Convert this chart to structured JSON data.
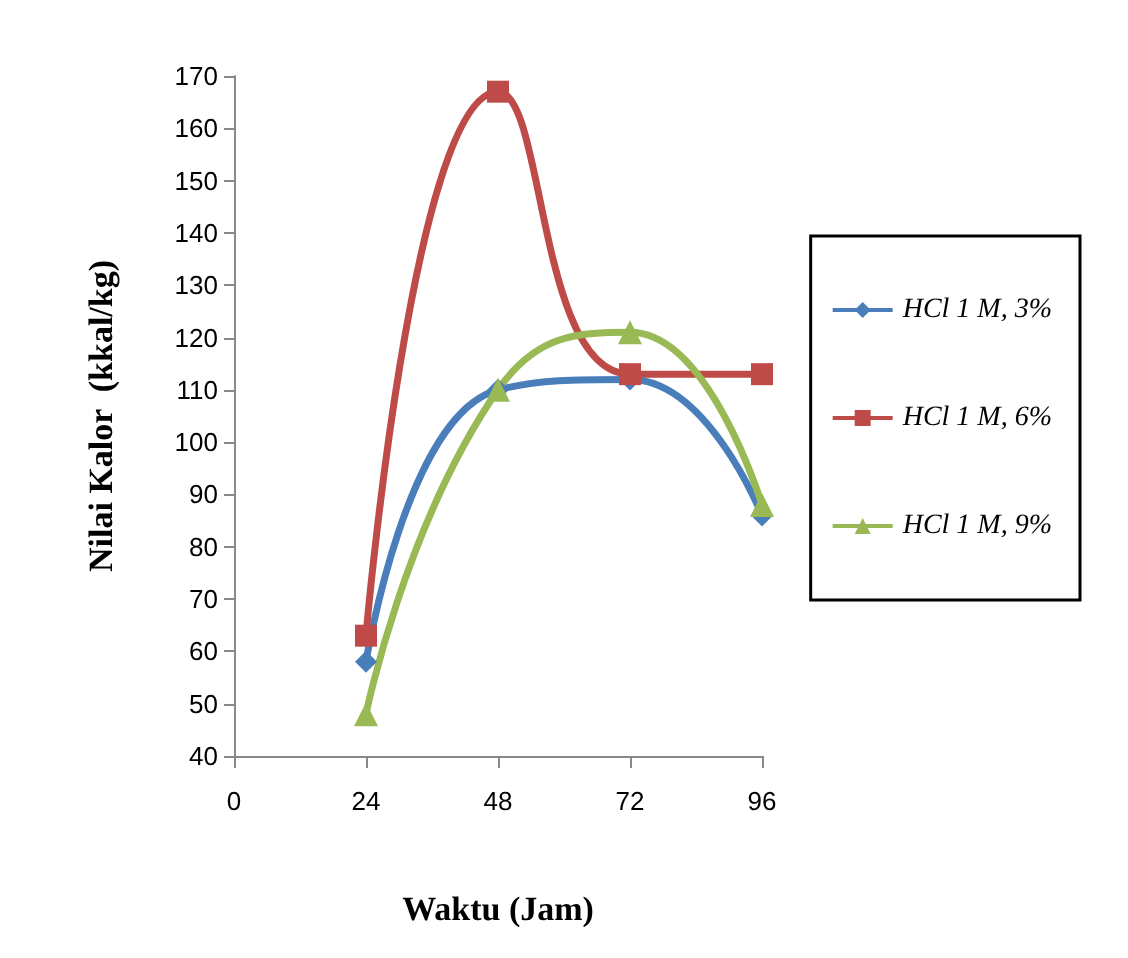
{
  "chart_data": {
    "type": "line",
    "xlabel": "Waktu (Jam)",
    "ylabel": "Nilai Kalor  (kkal/kg)",
    "x": [
      24,
      48,
      72,
      96
    ],
    "xlim": [
      0,
      96
    ],
    "xticks": [
      0,
      24,
      48,
      72,
      96
    ],
    "ylim": [
      40,
      170
    ],
    "yticks": [
      40,
      50,
      60,
      70,
      80,
      90,
      100,
      110,
      120,
      130,
      140,
      150,
      160,
      170
    ],
    "grid": false,
    "legend": "right",
    "series": [
      {
        "name": "HCl 1 M, 3%",
        "color": "#4a7ebb",
        "marker": "diamond",
        "values": [
          58,
          110,
          112,
          86
        ]
      },
      {
        "name": "HCl 1 M, 6%",
        "color": "#be4b48",
        "marker": "square",
        "values": [
          63,
          167,
          113,
          113
        ]
      },
      {
        "name": "HCl 1 M, 9%",
        "color": "#98b954",
        "marker": "triangle",
        "values": [
          48,
          110,
          121,
          88
        ]
      }
    ]
  }
}
